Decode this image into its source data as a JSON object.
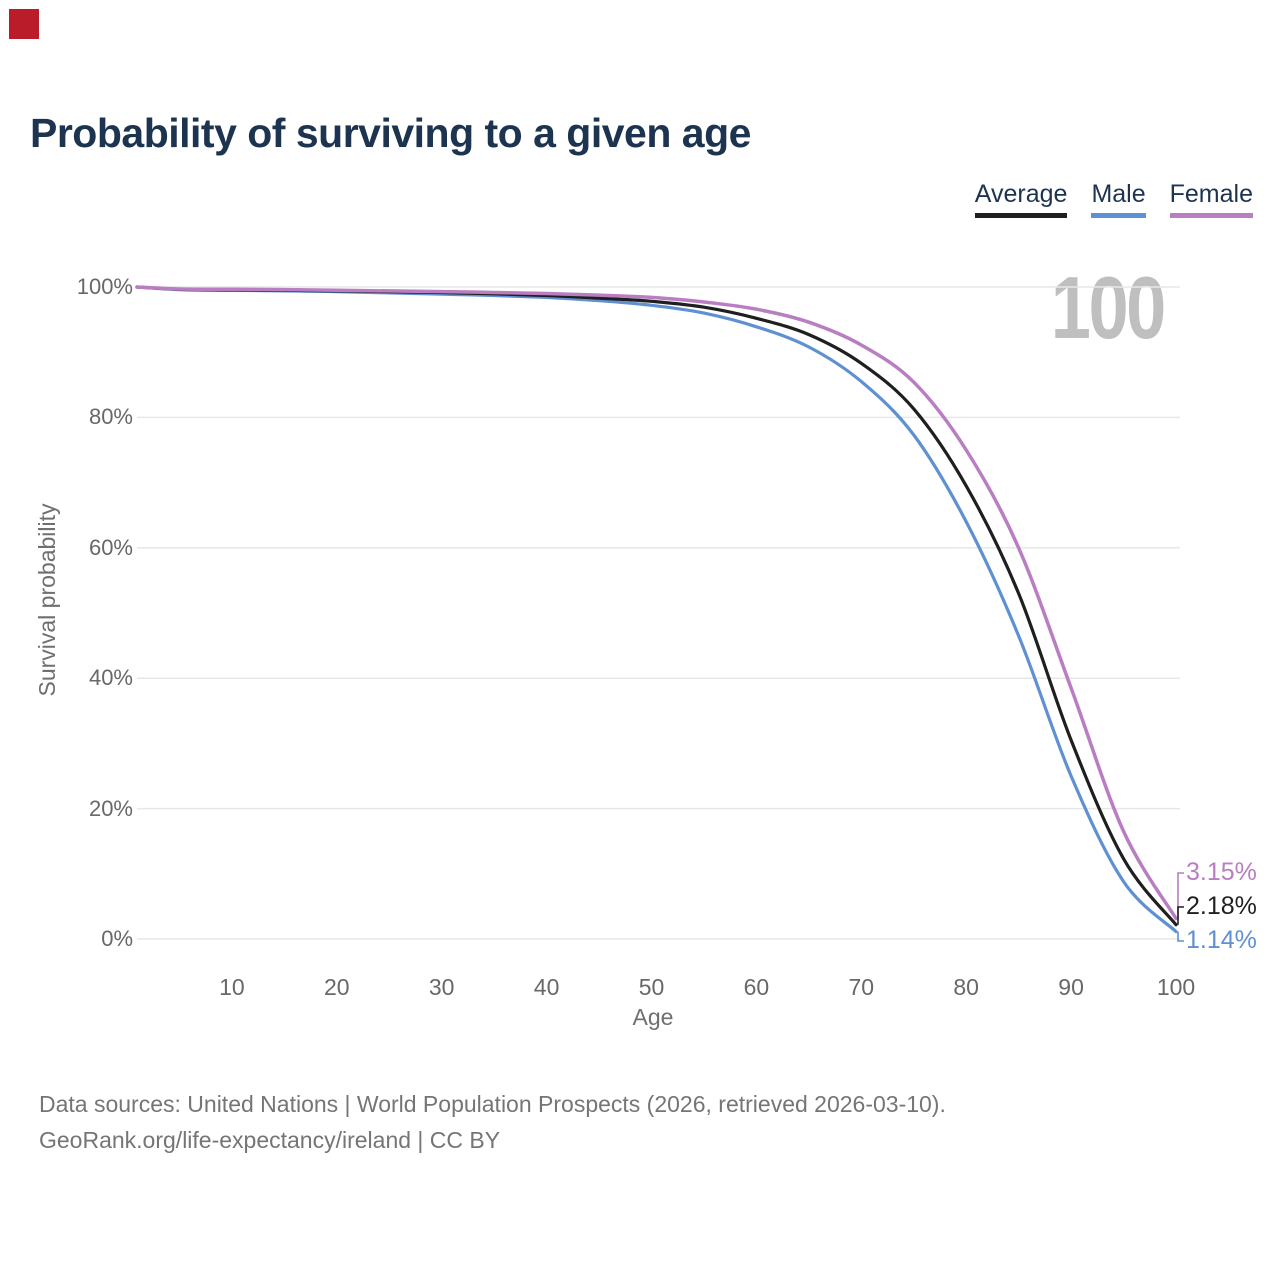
{
  "marker": {
    "color": "#bb1c2a"
  },
  "header": {
    "title": "Probability of surviving to a given age"
  },
  "legend": {
    "items": [
      {
        "label": "Average",
        "color": "#1f1f1f"
      },
      {
        "label": "Male",
        "color": "#5e90d2"
      },
      {
        "label": "Female",
        "color": "#b97ec2"
      }
    ]
  },
  "chart_data": {
    "type": "line",
    "title": "Probability of surviving to a given age",
    "xlabel": "Age",
    "ylabel": "Survival probability",
    "xlim": [
      0,
      100
    ],
    "ylim": [
      0,
      100
    ],
    "xticks": [
      10,
      20,
      30,
      40,
      50,
      60,
      70,
      80,
      90,
      100
    ],
    "yticks": [
      0,
      20,
      40,
      60,
      80,
      100
    ],
    "ytick_suffix": "%",
    "grid": "horizontal-only",
    "legend_position": "top-right",
    "watermark": "100",
    "x": [
      0,
      5,
      10,
      15,
      20,
      25,
      30,
      35,
      40,
      45,
      50,
      55,
      60,
      65,
      70,
      75,
      80,
      85,
      90,
      95,
      100
    ],
    "series": [
      {
        "name": "Male",
        "color": "#5e90d2",
        "end_label": "1.14%",
        "values": [
          100,
          99.6,
          99.5,
          99.4,
          99.3,
          99.1,
          98.9,
          98.7,
          98.4,
          97.9,
          97.2,
          96.0,
          93.9,
          90.8,
          85.5,
          77.3,
          64.0,
          46.5,
          25.0,
          8.8,
          1.14
        ]
      },
      {
        "name": "Average",
        "color": "#1f1f1f",
        "end_label": "2.18%",
        "values": [
          100,
          99.65,
          99.55,
          99.5,
          99.4,
          99.3,
          99.15,
          98.95,
          98.7,
          98.3,
          97.8,
          96.9,
          95.2,
          92.7,
          88.3,
          81.3,
          69.5,
          53.0,
          30.5,
          12.3,
          2.18
        ]
      },
      {
        "name": "Female",
        "color": "#b97ec2",
        "end_label": "3.15%",
        "values": [
          100,
          99.7,
          99.65,
          99.6,
          99.5,
          99.4,
          99.3,
          99.15,
          99.0,
          98.75,
          98.4,
          97.7,
          96.6,
          94.6,
          91.1,
          85.4,
          75.0,
          60.0,
          38.5,
          16.5,
          3.15
        ]
      }
    ]
  },
  "footer": {
    "line1": "Data sources: United Nations | World Population Prospects (2026, retrieved 2026-03-10).",
    "line2": "GeoRank.org/life-expectancy/ireland | CC BY"
  }
}
